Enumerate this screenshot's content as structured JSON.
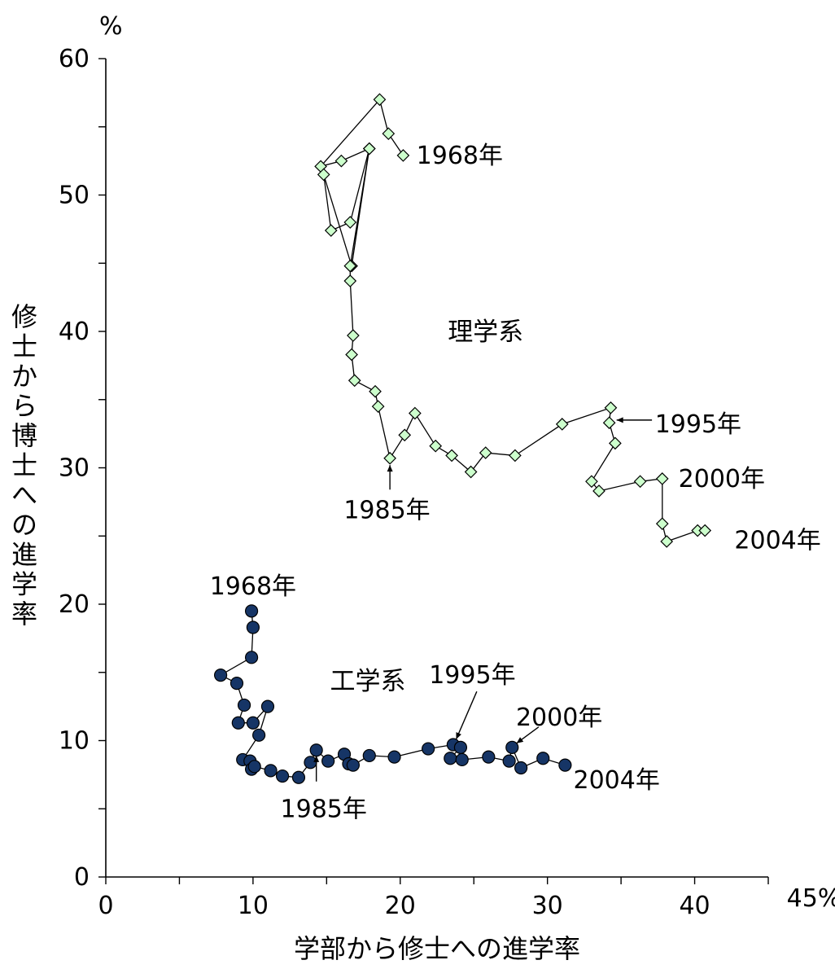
{
  "chart_data": {
    "type": "scatter",
    "title": "",
    "xlabel": "学部から修士への進学率",
    "ylabel": "修士から博士への進学率",
    "x_unit": "%",
    "y_unit": "%",
    "xlim": [
      0,
      45
    ],
    "ylim": [
      0,
      60
    ],
    "x_ticks_minor": [
      0,
      5,
      10,
      15,
      20,
      25,
      30,
      35,
      40,
      45
    ],
    "y_ticks_minor": [
      0,
      5,
      10,
      15,
      20,
      25,
      30,
      35,
      40,
      45,
      50,
      55,
      60
    ],
    "x_tick_labels": [
      {
        "value": 0,
        "label": "0"
      },
      {
        "value": 10,
        "label": "10"
      },
      {
        "value": 20,
        "label": "20"
      },
      {
        "value": 30,
        "label": "30"
      },
      {
        "value": 40,
        "label": "40"
      },
      {
        "value": 45,
        "label": "45%"
      }
    ],
    "y_tick_labels": [
      {
        "value": 0,
        "label": "0"
      },
      {
        "value": 10,
        "label": "10"
      },
      {
        "value": 20,
        "label": "20"
      },
      {
        "value": 30,
        "label": "30"
      },
      {
        "value": 40,
        "label": "40"
      },
      {
        "value": 50,
        "label": "50"
      },
      {
        "value": 60,
        "label": "60"
      }
    ],
    "grid": false,
    "series": [
      {
        "name": "理学系",
        "marker": "diamond",
        "marker_color": "#ccffcc",
        "marker_edge": "#000000",
        "x": [
          20.2,
          19.2,
          18.6,
          14.6,
          16.0,
          17.9,
          16.6,
          15.3,
          14.8,
          16.7,
          17.9,
          16.6,
          16.6,
          16.8,
          16.7,
          16.9,
          18.3,
          18.5,
          19.3,
          20.3,
          21.0,
          22.4,
          23.5,
          24.8,
          25.8,
          27.8,
          31.0,
          34.3,
          34.2,
          34.6,
          33.0,
          33.5,
          36.3,
          37.8,
          37.8,
          38.1,
          40.2,
          40.7
        ],
        "y": [
          52.9,
          54.5,
          57.0,
          52.1,
          52.5,
          53.4,
          48.0,
          47.4,
          51.5,
          44.8,
          53.4,
          44.8,
          43.7,
          39.7,
          38.3,
          36.4,
          35.6,
          34.5,
          30.7,
          32.4,
          34.0,
          31.6,
          30.9,
          29.7,
          31.1,
          30.9,
          33.2,
          34.4,
          33.3,
          31.8,
          29.0,
          28.3,
          29.0,
          29.2,
          25.9,
          24.6,
          25.4,
          25.4
        ]
      },
      {
        "name": "工学系",
        "marker": "circle",
        "marker_color": "#163566",
        "marker_edge": "#000000",
        "x": [
          9.9,
          10.0,
          9.9,
          7.8,
          8.9,
          9.4,
          9.0,
          10.0,
          11.0,
          10.4,
          9.3,
          9.8,
          9.9,
          10.1,
          11.2,
          12.0,
          13.1,
          13.9,
          14.3,
          15.1,
          16.2,
          16.5,
          16.8,
          17.9,
          19.6,
          21.9,
          23.6,
          24.1,
          23.4,
          24.2,
          26.0,
          27.4,
          27.6,
          28.2,
          29.7,
          31.2
        ],
        "y": [
          19.5,
          18.3,
          16.1,
          14.8,
          14.2,
          12.6,
          11.3,
          11.3,
          12.5,
          10.4,
          8.6,
          8.5,
          7.9,
          8.1,
          7.8,
          7.4,
          7.3,
          8.4,
          9.3,
          8.5,
          9.0,
          8.3,
          8.2,
          8.9,
          8.8,
          9.4,
          9.7,
          9.5,
          8.7,
          8.6,
          8.8,
          8.5,
          9.5,
          8.0,
          8.7,
          8.2
        ]
      }
    ],
    "annotations": [
      {
        "id": "sci-1968",
        "text": "1968年",
        "x": 21.1,
        "y": 52.9,
        "anchor": "start"
      },
      {
        "id": "sci-1985",
        "text": "1985年",
        "x": 19.1,
        "y": 26.9,
        "anchor": "middle"
      },
      {
        "id": "sci-1995",
        "text": "1995年",
        "x": 37.3,
        "y": 33.2,
        "anchor": "start"
      },
      {
        "id": "sci-2000",
        "text": "2000年",
        "x": 38.9,
        "y": 29.2,
        "anchor": "start"
      },
      {
        "id": "sci-2004",
        "text": "2004年",
        "x": 42.7,
        "y": 24.7,
        "anchor": "start"
      },
      {
        "id": "eng-1968",
        "text": "1968年",
        "x": 10.0,
        "y": 21.3,
        "anchor": "middle"
      },
      {
        "id": "eng-1985",
        "text": "1985年",
        "x": 14.8,
        "y": 5.0,
        "anchor": "middle"
      },
      {
        "id": "eng-1995",
        "text": "1995年",
        "x": 24.9,
        "y": 14.8,
        "anchor": "middle"
      },
      {
        "id": "eng-2000",
        "text": "2000年",
        "x": 30.8,
        "y": 11.7,
        "anchor": "middle"
      },
      {
        "id": "eng-2004",
        "text": "2004年",
        "x": 34.7,
        "y": 7.1,
        "anchor": "middle"
      }
    ],
    "arrows": [
      {
        "id": "arrow-sci-1985",
        "x1": 19.3,
        "y1": 28.4,
        "x2": 19.3,
        "y2": 30.2
      },
      {
        "id": "arrow-sci-1995",
        "x1": 37.1,
        "y1": 33.5,
        "x2": 34.7,
        "y2": 33.5
      },
      {
        "id": "arrow-eng-1985",
        "x1": 14.3,
        "y1": 7.0,
        "x2": 14.3,
        "y2": 8.9
      },
      {
        "id": "arrow-eng-1995",
        "x1": 25.2,
        "y1": 13.6,
        "x2": 23.8,
        "y2": 10.1
      },
      {
        "id": "arrow-eng-2000",
        "x1": 29.4,
        "y1": 11.0,
        "x2": 27.9,
        "y2": 9.8
      }
    ],
    "group_labels": [
      {
        "id": "label-science",
        "text": "理学系",
        "x": 25.8,
        "y": 40.0
      },
      {
        "id": "label-engineering",
        "text": "工学系",
        "x": 17.8,
        "y": 14.4
      }
    ]
  }
}
